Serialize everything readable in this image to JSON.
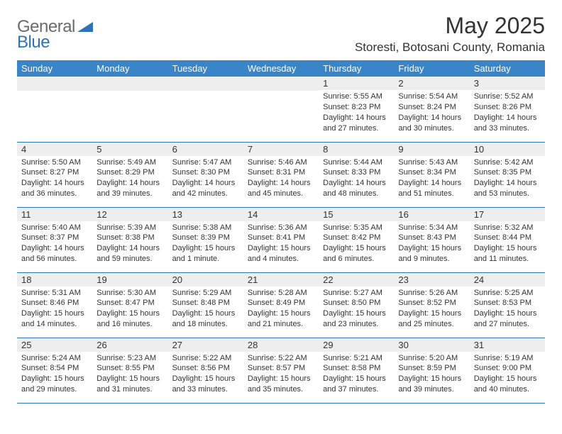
{
  "brand": {
    "text_general": "General",
    "text_blue": "Blue"
  },
  "title": "May 2025",
  "location": "Storesti, Botosani County, Romania",
  "colors": {
    "header_bg": "#3a85c7",
    "header_text": "#ffffff",
    "band_bg": "#eeeeee",
    "row_border": "#2e74b5",
    "brand_gray": "#6b6b6b",
    "brand_blue": "#2e74b5",
    "body_text": "#333333",
    "page_bg": "#ffffff"
  },
  "typography": {
    "title_fontsize": 32,
    "location_fontsize": 17,
    "header_fontsize": 13,
    "daynum_fontsize": 13,
    "body_fontsize": 11
  },
  "day_headers": [
    "Sunday",
    "Monday",
    "Tuesday",
    "Wednesday",
    "Thursday",
    "Friday",
    "Saturday"
  ],
  "weeks": [
    [
      null,
      null,
      null,
      null,
      {
        "n": "1",
        "sr": "Sunrise: 5:55 AM",
        "ss": "Sunset: 8:23 PM",
        "d1": "Daylight: 14 hours",
        "d2": "and 27 minutes."
      },
      {
        "n": "2",
        "sr": "Sunrise: 5:54 AM",
        "ss": "Sunset: 8:24 PM",
        "d1": "Daylight: 14 hours",
        "d2": "and 30 minutes."
      },
      {
        "n": "3",
        "sr": "Sunrise: 5:52 AM",
        "ss": "Sunset: 8:26 PM",
        "d1": "Daylight: 14 hours",
        "d2": "and 33 minutes."
      }
    ],
    [
      {
        "n": "4",
        "sr": "Sunrise: 5:50 AM",
        "ss": "Sunset: 8:27 PM",
        "d1": "Daylight: 14 hours",
        "d2": "and 36 minutes."
      },
      {
        "n": "5",
        "sr": "Sunrise: 5:49 AM",
        "ss": "Sunset: 8:29 PM",
        "d1": "Daylight: 14 hours",
        "d2": "and 39 minutes."
      },
      {
        "n": "6",
        "sr": "Sunrise: 5:47 AM",
        "ss": "Sunset: 8:30 PM",
        "d1": "Daylight: 14 hours",
        "d2": "and 42 minutes."
      },
      {
        "n": "7",
        "sr": "Sunrise: 5:46 AM",
        "ss": "Sunset: 8:31 PM",
        "d1": "Daylight: 14 hours",
        "d2": "and 45 minutes."
      },
      {
        "n": "8",
        "sr": "Sunrise: 5:44 AM",
        "ss": "Sunset: 8:33 PM",
        "d1": "Daylight: 14 hours",
        "d2": "and 48 minutes."
      },
      {
        "n": "9",
        "sr": "Sunrise: 5:43 AM",
        "ss": "Sunset: 8:34 PM",
        "d1": "Daylight: 14 hours",
        "d2": "and 51 minutes."
      },
      {
        "n": "10",
        "sr": "Sunrise: 5:42 AM",
        "ss": "Sunset: 8:35 PM",
        "d1": "Daylight: 14 hours",
        "d2": "and 53 minutes."
      }
    ],
    [
      {
        "n": "11",
        "sr": "Sunrise: 5:40 AM",
        "ss": "Sunset: 8:37 PM",
        "d1": "Daylight: 14 hours",
        "d2": "and 56 minutes."
      },
      {
        "n": "12",
        "sr": "Sunrise: 5:39 AM",
        "ss": "Sunset: 8:38 PM",
        "d1": "Daylight: 14 hours",
        "d2": "and 59 minutes."
      },
      {
        "n": "13",
        "sr": "Sunrise: 5:38 AM",
        "ss": "Sunset: 8:39 PM",
        "d1": "Daylight: 15 hours",
        "d2": "and 1 minute."
      },
      {
        "n": "14",
        "sr": "Sunrise: 5:36 AM",
        "ss": "Sunset: 8:41 PM",
        "d1": "Daylight: 15 hours",
        "d2": "and 4 minutes."
      },
      {
        "n": "15",
        "sr": "Sunrise: 5:35 AM",
        "ss": "Sunset: 8:42 PM",
        "d1": "Daylight: 15 hours",
        "d2": "and 6 minutes."
      },
      {
        "n": "16",
        "sr": "Sunrise: 5:34 AM",
        "ss": "Sunset: 8:43 PM",
        "d1": "Daylight: 15 hours",
        "d2": "and 9 minutes."
      },
      {
        "n": "17",
        "sr": "Sunrise: 5:32 AM",
        "ss": "Sunset: 8:44 PM",
        "d1": "Daylight: 15 hours",
        "d2": "and 11 minutes."
      }
    ],
    [
      {
        "n": "18",
        "sr": "Sunrise: 5:31 AM",
        "ss": "Sunset: 8:46 PM",
        "d1": "Daylight: 15 hours",
        "d2": "and 14 minutes."
      },
      {
        "n": "19",
        "sr": "Sunrise: 5:30 AM",
        "ss": "Sunset: 8:47 PM",
        "d1": "Daylight: 15 hours",
        "d2": "and 16 minutes."
      },
      {
        "n": "20",
        "sr": "Sunrise: 5:29 AM",
        "ss": "Sunset: 8:48 PM",
        "d1": "Daylight: 15 hours",
        "d2": "and 18 minutes."
      },
      {
        "n": "21",
        "sr": "Sunrise: 5:28 AM",
        "ss": "Sunset: 8:49 PM",
        "d1": "Daylight: 15 hours",
        "d2": "and 21 minutes."
      },
      {
        "n": "22",
        "sr": "Sunrise: 5:27 AM",
        "ss": "Sunset: 8:50 PM",
        "d1": "Daylight: 15 hours",
        "d2": "and 23 minutes."
      },
      {
        "n": "23",
        "sr": "Sunrise: 5:26 AM",
        "ss": "Sunset: 8:52 PM",
        "d1": "Daylight: 15 hours",
        "d2": "and 25 minutes."
      },
      {
        "n": "24",
        "sr": "Sunrise: 5:25 AM",
        "ss": "Sunset: 8:53 PM",
        "d1": "Daylight: 15 hours",
        "d2": "and 27 minutes."
      }
    ],
    [
      {
        "n": "25",
        "sr": "Sunrise: 5:24 AM",
        "ss": "Sunset: 8:54 PM",
        "d1": "Daylight: 15 hours",
        "d2": "and 29 minutes."
      },
      {
        "n": "26",
        "sr": "Sunrise: 5:23 AM",
        "ss": "Sunset: 8:55 PM",
        "d1": "Daylight: 15 hours",
        "d2": "and 31 minutes."
      },
      {
        "n": "27",
        "sr": "Sunrise: 5:22 AM",
        "ss": "Sunset: 8:56 PM",
        "d1": "Daylight: 15 hours",
        "d2": "and 33 minutes."
      },
      {
        "n": "28",
        "sr": "Sunrise: 5:22 AM",
        "ss": "Sunset: 8:57 PM",
        "d1": "Daylight: 15 hours",
        "d2": "and 35 minutes."
      },
      {
        "n": "29",
        "sr": "Sunrise: 5:21 AM",
        "ss": "Sunset: 8:58 PM",
        "d1": "Daylight: 15 hours",
        "d2": "and 37 minutes."
      },
      {
        "n": "30",
        "sr": "Sunrise: 5:20 AM",
        "ss": "Sunset: 8:59 PM",
        "d1": "Daylight: 15 hours",
        "d2": "and 39 minutes."
      },
      {
        "n": "31",
        "sr": "Sunrise: 5:19 AM",
        "ss": "Sunset: 9:00 PM",
        "d1": "Daylight: 15 hours",
        "d2": "and 40 minutes."
      }
    ]
  ]
}
